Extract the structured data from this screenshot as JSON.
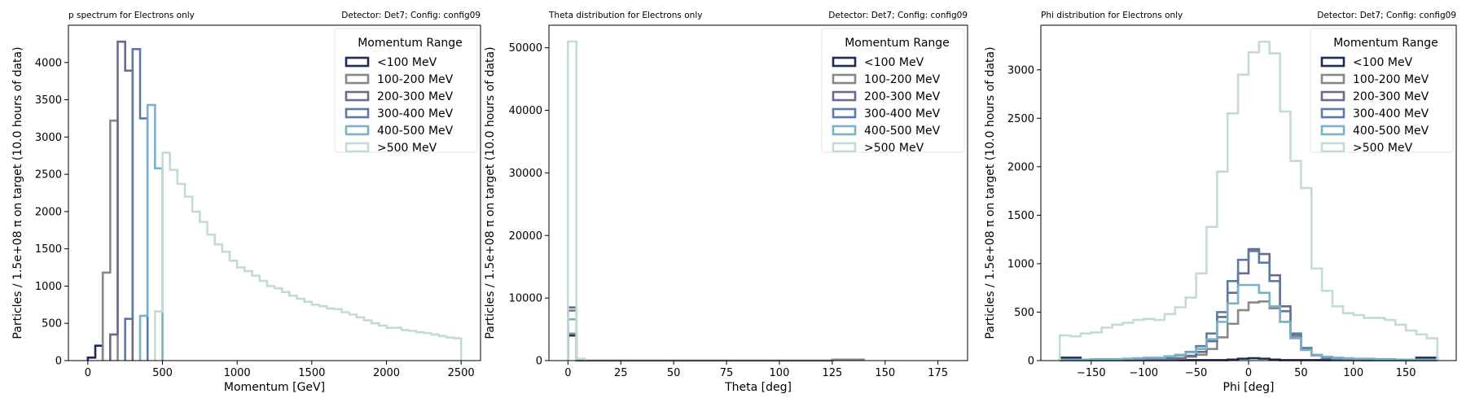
{
  "figure": {
    "background": "#ffffff"
  },
  "legend_title": "Momentum Range",
  "series_colors": [
    "#1f2a55",
    "#87878c",
    "#6c6a8c",
    "#5b7ba6",
    "#7bb1c6",
    "#c3dcd1"
  ],
  "chart_data": [
    {
      "type": "step-histogram",
      "title": "p spectrum for Electrons only",
      "subtitle": "Detector: Det7; Config: config09",
      "xlabel": "Momentum [GeV]",
      "ylabel": "Particles / 1.5e+08 π on target (10.0 hours of data)",
      "xlim": [
        -130,
        2630
      ],
      "ylim": [
        0,
        4500
      ],
      "xticks": [
        0,
        500,
        1000,
        1500,
        2000,
        2500
      ],
      "yticks": [
        0,
        500,
        1000,
        1500,
        2000,
        2500,
        3000,
        3500,
        4000
      ],
      "legend_title": "Momentum Range",
      "legend_position": "top-right",
      "series": [
        {
          "name": "<100 MeV",
          "edges": [
            0,
            50,
            100
          ],
          "values": [
            40,
            200
          ]
        },
        {
          "name": "100-200 MeV",
          "edges": [
            100,
            150,
            200
          ],
          "values": [
            1180,
            3220
          ]
        },
        {
          "name": "200-300 MeV",
          "edges": [
            150,
            200,
            250,
            300
          ],
          "values": [
            350,
            4280,
            3890
          ]
        },
        {
          "name": "300-400 MeV",
          "edges": [
            250,
            300,
            350,
            400
          ],
          "values": [
            560,
            4180,
            3250
          ]
        },
        {
          "name": "400-500 MeV",
          "edges": [
            350,
            400,
            450,
            500
          ],
          "values": [
            600,
            3430,
            2580
          ]
        },
        {
          "name": ">500 MeV",
          "edges": [
            450,
            500,
            550,
            600,
            650,
            700,
            750,
            800,
            850,
            900,
            950,
            1000,
            1050,
            1100,
            1150,
            1200,
            1250,
            1300,
            1350,
            1400,
            1450,
            1500,
            1550,
            1600,
            1650,
            1700,
            1750,
            1800,
            1850,
            1900,
            1950,
            2000,
            2050,
            2100,
            2150,
            2200,
            2250,
            2300,
            2350,
            2400,
            2450,
            2500
          ],
          "values": [
            660,
            2790,
            2560,
            2370,
            2200,
            2000,
            1860,
            1690,
            1560,
            1460,
            1340,
            1250,
            1200,
            1140,
            1070,
            1000,
            970,
            920,
            870,
            830,
            790,
            750,
            730,
            700,
            690,
            650,
            620,
            580,
            540,
            500,
            470,
            440,
            440,
            410,
            400,
            380,
            370,
            350,
            330,
            310,
            300
          ]
        }
      ]
    },
    {
      "type": "step-histogram",
      "title": "Theta distribution for Electrons only",
      "subtitle": "Detector: Det7; Config: config09",
      "xlabel": "Theta [deg]",
      "ylabel": "Particles / 1.5e+08 π on target (10.0 hours of data)",
      "xlim": [
        -9,
        189
      ],
      "ylim": [
        0,
        53600
      ],
      "xticks": [
        0,
        25,
        50,
        75,
        100,
        125,
        150,
        175
      ],
      "yticks": [
        0,
        10000,
        20000,
        30000,
        40000,
        50000
      ],
      "legend_title": "Momentum Range",
      "legend_position": "top-right",
      "series": [
        {
          "name": "<100 MeV",
          "edges": [
            0,
            4
          ],
          "values": [
            4000
          ]
        },
        {
          "name": "100-200 MeV",
          "edges": [
            0,
            4,
            125,
            130,
            135,
            140
          ],
          "values": [
            4300,
            0,
            150,
            150,
            150
          ]
        },
        {
          "name": "200-300 MeV",
          "edges": [
            0,
            4
          ],
          "values": [
            8500
          ]
        },
        {
          "name": "300-400 MeV",
          "edges": [
            0,
            4
          ],
          "values": [
            8000
          ]
        },
        {
          "name": "400-500 MeV",
          "edges": [
            0,
            4
          ],
          "values": [
            6600
          ]
        },
        {
          "name": ">500 MeV",
          "edges": [
            0,
            4,
            8
          ],
          "values": [
            51000,
            300
          ]
        }
      ]
    },
    {
      "type": "step-histogram",
      "title": "Phi distribution for Electrons only",
      "subtitle": "Detector: Det7; Config: config09",
      "xlabel": "Phi [deg]",
      "ylabel": "Particles / 1.5e+08 π on target (10.0 hours of data)",
      "xlim": [
        -198,
        198
      ],
      "ylim": [
        0,
        3460
      ],
      "xticks": [
        -150,
        -100,
        -50,
        0,
        50,
        100,
        150
      ],
      "yticks": [
        0,
        500,
        1000,
        1500,
        2000,
        2500,
        3000
      ],
      "legend_title": "Momentum Range",
      "legend_position": "top-right",
      "series": [
        {
          "name": "<100 MeV",
          "edges": [
            -180,
            -170,
            -160,
            -150,
            -140,
            -130,
            -120,
            -110,
            -100,
            -90,
            -80,
            -70,
            -60,
            -50,
            -40,
            -30,
            -20,
            -10,
            0,
            10,
            20,
            30,
            40,
            50,
            60,
            70,
            80,
            90,
            100,
            110,
            120,
            130,
            140,
            150,
            160,
            170,
            180
          ],
          "values": [
            30,
            30,
            5,
            5,
            5,
            5,
            5,
            5,
            5,
            5,
            5,
            5,
            5,
            5,
            5,
            5,
            10,
            20,
            25,
            20,
            10,
            5,
            5,
            5,
            5,
            5,
            5,
            5,
            5,
            5,
            5,
            5,
            5,
            5,
            30,
            30
          ]
        },
        {
          "name": "100-200 MeV",
          "edges": [
            -180,
            -170,
            -160,
            -150,
            -140,
            -130,
            -120,
            -110,
            -100,
            -90,
            -80,
            -70,
            -60,
            -50,
            -40,
            -30,
            -20,
            -10,
            0,
            10,
            20,
            30,
            40,
            50,
            60,
            70,
            80,
            90,
            100,
            110,
            120,
            130,
            140,
            150,
            160,
            170,
            180
          ],
          "values": [
            5,
            5,
            5,
            5,
            5,
            5,
            5,
            5,
            5,
            10,
            10,
            20,
            40,
            60,
            120,
            240,
            380,
            520,
            600,
            610,
            540,
            400,
            250,
            130,
            60,
            25,
            15,
            10,
            10,
            5,
            5,
            5,
            5,
            5,
            5,
            5
          ]
        },
        {
          "name": "200-300 MeV",
          "edges": [
            -180,
            -170,
            -160,
            -150,
            -140,
            -130,
            -120,
            -110,
            -100,
            -90,
            -80,
            -70,
            -60,
            -50,
            -40,
            -30,
            -20,
            -10,
            0,
            10,
            20,
            30,
            40,
            50,
            60,
            70,
            80,
            90,
            100,
            110,
            120,
            130,
            140,
            150,
            160,
            170,
            180
          ],
          "values": [
            5,
            5,
            5,
            5,
            5,
            5,
            5,
            5,
            5,
            10,
            15,
            25,
            50,
            90,
            200,
            450,
            700,
            900,
            1150,
            1100,
            880,
            560,
            270,
            120,
            55,
            25,
            15,
            10,
            10,
            5,
            5,
            5,
            5,
            5,
            5,
            5
          ]
        },
        {
          "name": "300-400 MeV",
          "edges": [
            -180,
            -170,
            -160,
            -150,
            -140,
            -130,
            -120,
            -110,
            -100,
            -90,
            -80,
            -70,
            -60,
            -50,
            -40,
            -30,
            -20,
            -10,
            0,
            10,
            20,
            30,
            40,
            50,
            60,
            70,
            80,
            90,
            100,
            110,
            120,
            130,
            140,
            150,
            160,
            170,
            180
          ],
          "values": [
            5,
            5,
            5,
            5,
            5,
            10,
            10,
            15,
            20,
            25,
            35,
            55,
            90,
            150,
            280,
            500,
            820,
            1040,
            1130,
            1010,
            820,
            510,
            280,
            130,
            60,
            30,
            20,
            15,
            10,
            10,
            5,
            5,
            5,
            5,
            5,
            5
          ]
        },
        {
          "name": "400-500 MeV",
          "edges": [
            -180,
            -170,
            -160,
            -150,
            -140,
            -130,
            -120,
            -110,
            -100,
            -90,
            -80,
            -70,
            -60,
            -50,
            -40,
            -30,
            -20,
            -10,
            0,
            10,
            20,
            30,
            40,
            50,
            60,
            70,
            80,
            90,
            100,
            110,
            120,
            130,
            140,
            150,
            160,
            170,
            180
          ],
          "values": [
            10,
            10,
            10,
            15,
            15,
            15,
            20,
            25,
            30,
            30,
            45,
            60,
            85,
            120,
            220,
            400,
            590,
            780,
            780,
            700,
            560,
            400,
            230,
            110,
            60,
            40,
            30,
            25,
            20,
            20,
            15,
            15,
            10,
            10,
            10,
            10
          ]
        },
        {
          "name": ">500 MeV",
          "edges": [
            -180,
            -170,
            -160,
            -150,
            -140,
            -130,
            -120,
            -110,
            -100,
            -90,
            -80,
            -70,
            -60,
            -50,
            -40,
            -30,
            -20,
            -10,
            0,
            10,
            20,
            30,
            40,
            50,
            60,
            70,
            80,
            90,
            100,
            110,
            120,
            130,
            140,
            150,
            160,
            170,
            180
          ],
          "values": [
            260,
            250,
            280,
            290,
            340,
            370,
            390,
            420,
            430,
            420,
            480,
            550,
            650,
            900,
            1380,
            1950,
            2550,
            2950,
            3180,
            3290,
            3170,
            2570,
            2060,
            1780,
            950,
            720,
            560,
            490,
            470,
            440,
            440,
            420,
            370,
            310,
            270,
            230
          ]
        }
      ]
    }
  ]
}
